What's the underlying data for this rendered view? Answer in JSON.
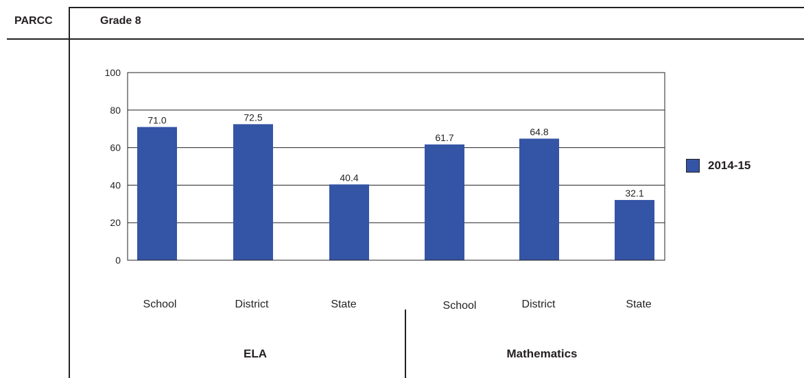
{
  "header": {
    "left_label": "PARCC",
    "grade_label": "Grade 8"
  },
  "chart_data": {
    "type": "bar",
    "categories": [
      "School",
      "District",
      "State",
      "School",
      "District",
      "State"
    ],
    "groups": [
      {
        "name": "ELA",
        "categories": [
          "School",
          "District",
          "State"
        ]
      },
      {
        "name": "Mathematics",
        "categories": [
          "School",
          "District",
          "State"
        ]
      }
    ],
    "series": [
      {
        "name": "2014-15",
        "values": [
          71.0,
          72.5,
          40.4,
          61.7,
          64.8,
          32.1
        ],
        "color": "#3454a5"
      }
    ],
    "data_labels": [
      "71.0",
      "72.5",
      "40.4",
      "61.7",
      "64.8",
      "32.1"
    ],
    "ylim": [
      0,
      100
    ],
    "yticks": [
      0,
      20,
      40,
      60,
      80,
      100
    ],
    "grid": true,
    "legend": "right"
  }
}
